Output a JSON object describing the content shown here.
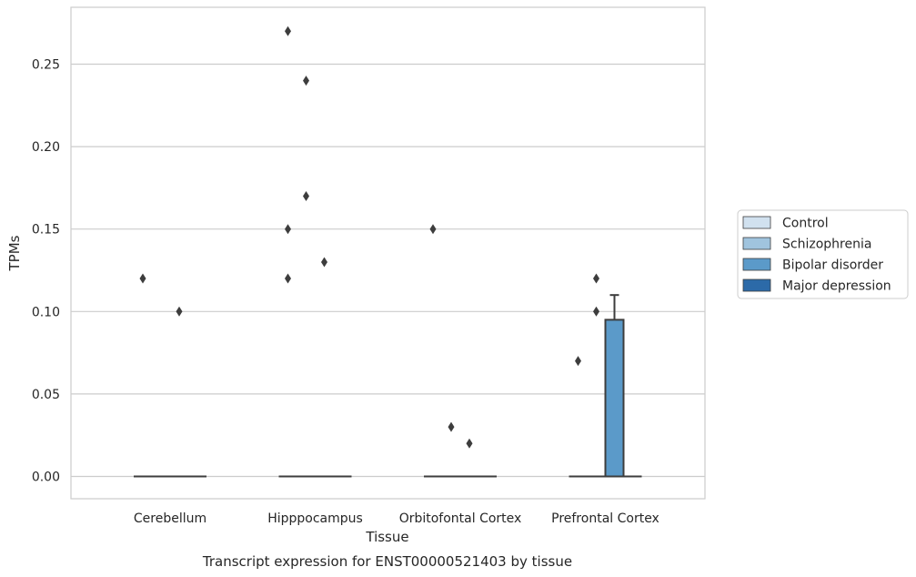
{
  "chart_data": {
    "type": "box",
    "xlabel": "Tissue",
    "ylabel": "TPMs",
    "caption": "Transcript expression for ENST00000521403 by tissue",
    "ylim": [
      -0.013,
      0.283
    ],
    "yticks": [
      0.0,
      0.05,
      0.1,
      0.15,
      0.2,
      0.25
    ],
    "ytick_labels": [
      "0.00",
      "0.05",
      "0.10",
      "0.15",
      "0.20",
      "0.25"
    ],
    "grid": true,
    "legend_position": "right",
    "categories": [
      "Cerebellum",
      "Hipppocampus",
      "Orbitofontal Cortex",
      "Prefrontal Cortex"
    ],
    "series": [
      {
        "name": "Control",
        "color": "#d1e1ef"
      },
      {
        "name": "Schizophrenia",
        "color": "#a0c4de"
      },
      {
        "name": "Bipolar disorder",
        "color": "#5b9ac9"
      },
      {
        "name": "Major depression",
        "color": "#2c6aa8"
      }
    ],
    "boxes": [
      {
        "category": "Cerebellum",
        "series": "Control",
        "q1": 0,
        "median": 0,
        "q3": 0,
        "whisker_low": 0,
        "whisker_high": 0,
        "outliers": [
          0.12
        ]
      },
      {
        "category": "Cerebellum",
        "series": "Schizophrenia",
        "q1": 0,
        "median": 0,
        "q3": 0,
        "whisker_low": 0,
        "whisker_high": 0,
        "outliers": []
      },
      {
        "category": "Cerebellum",
        "series": "Bipolar disorder",
        "q1": 0,
        "median": 0,
        "q3": 0,
        "whisker_low": 0,
        "whisker_high": 0,
        "outliers": [
          0.1
        ]
      },
      {
        "category": "Cerebellum",
        "series": "Major depression",
        "q1": 0,
        "median": 0,
        "q3": 0,
        "whisker_low": 0,
        "whisker_high": 0,
        "outliers": []
      },
      {
        "category": "Hipppocampus",
        "series": "Control",
        "q1": 0,
        "median": 0,
        "q3": 0,
        "whisker_low": 0,
        "whisker_high": 0,
        "outliers": [
          0.27,
          0.15,
          0.12
        ]
      },
      {
        "category": "Hipppocampus",
        "series": "Schizophrenia",
        "q1": 0,
        "median": 0,
        "q3": 0,
        "whisker_low": 0,
        "whisker_high": 0,
        "outliers": [
          0.24,
          0.17
        ]
      },
      {
        "category": "Hipppocampus",
        "series": "Bipolar disorder",
        "q1": 0,
        "median": 0,
        "q3": 0,
        "whisker_low": 0,
        "whisker_high": 0,
        "outliers": [
          0.13
        ]
      },
      {
        "category": "Hipppocampus",
        "series": "Major depression",
        "q1": 0,
        "median": 0,
        "q3": 0,
        "whisker_low": 0,
        "whisker_high": 0,
        "outliers": []
      },
      {
        "category": "Orbitofontal Cortex",
        "series": "Control",
        "q1": 0,
        "median": 0,
        "q3": 0,
        "whisker_low": 0,
        "whisker_high": 0,
        "outliers": [
          0.15
        ]
      },
      {
        "category": "Orbitofontal Cortex",
        "series": "Schizophrenia",
        "q1": 0,
        "median": 0,
        "q3": 0,
        "whisker_low": 0,
        "whisker_high": 0,
        "outliers": [
          0.03
        ]
      },
      {
        "category": "Orbitofontal Cortex",
        "series": "Bipolar disorder",
        "q1": 0,
        "median": 0,
        "q3": 0,
        "whisker_low": 0,
        "whisker_high": 0,
        "outliers": [
          0.02
        ]
      },
      {
        "category": "Orbitofontal Cortex",
        "series": "Major depression",
        "q1": 0,
        "median": 0,
        "q3": 0,
        "whisker_low": 0,
        "whisker_high": 0,
        "outliers": []
      },
      {
        "category": "Prefrontal Cortex",
        "series": "Control",
        "q1": 0,
        "median": 0,
        "q3": 0,
        "whisker_low": 0,
        "whisker_high": 0,
        "outliers": [
          0.07
        ]
      },
      {
        "category": "Prefrontal Cortex",
        "series": "Schizophrenia",
        "q1": 0,
        "median": 0,
        "q3": 0,
        "whisker_low": 0,
        "whisker_high": 0,
        "outliers": [
          0.12,
          0.1
        ]
      },
      {
        "category": "Prefrontal Cortex",
        "series": "Bipolar disorder",
        "q1": 0,
        "median": 0,
        "q3": 0.095,
        "whisker_low": 0,
        "whisker_high": 0.11,
        "outliers": []
      },
      {
        "category": "Prefrontal Cortex",
        "series": "Major depression",
        "q1": 0,
        "median": 0,
        "q3": 0,
        "whisker_low": 0,
        "whisker_high": 0,
        "outliers": []
      }
    ]
  }
}
